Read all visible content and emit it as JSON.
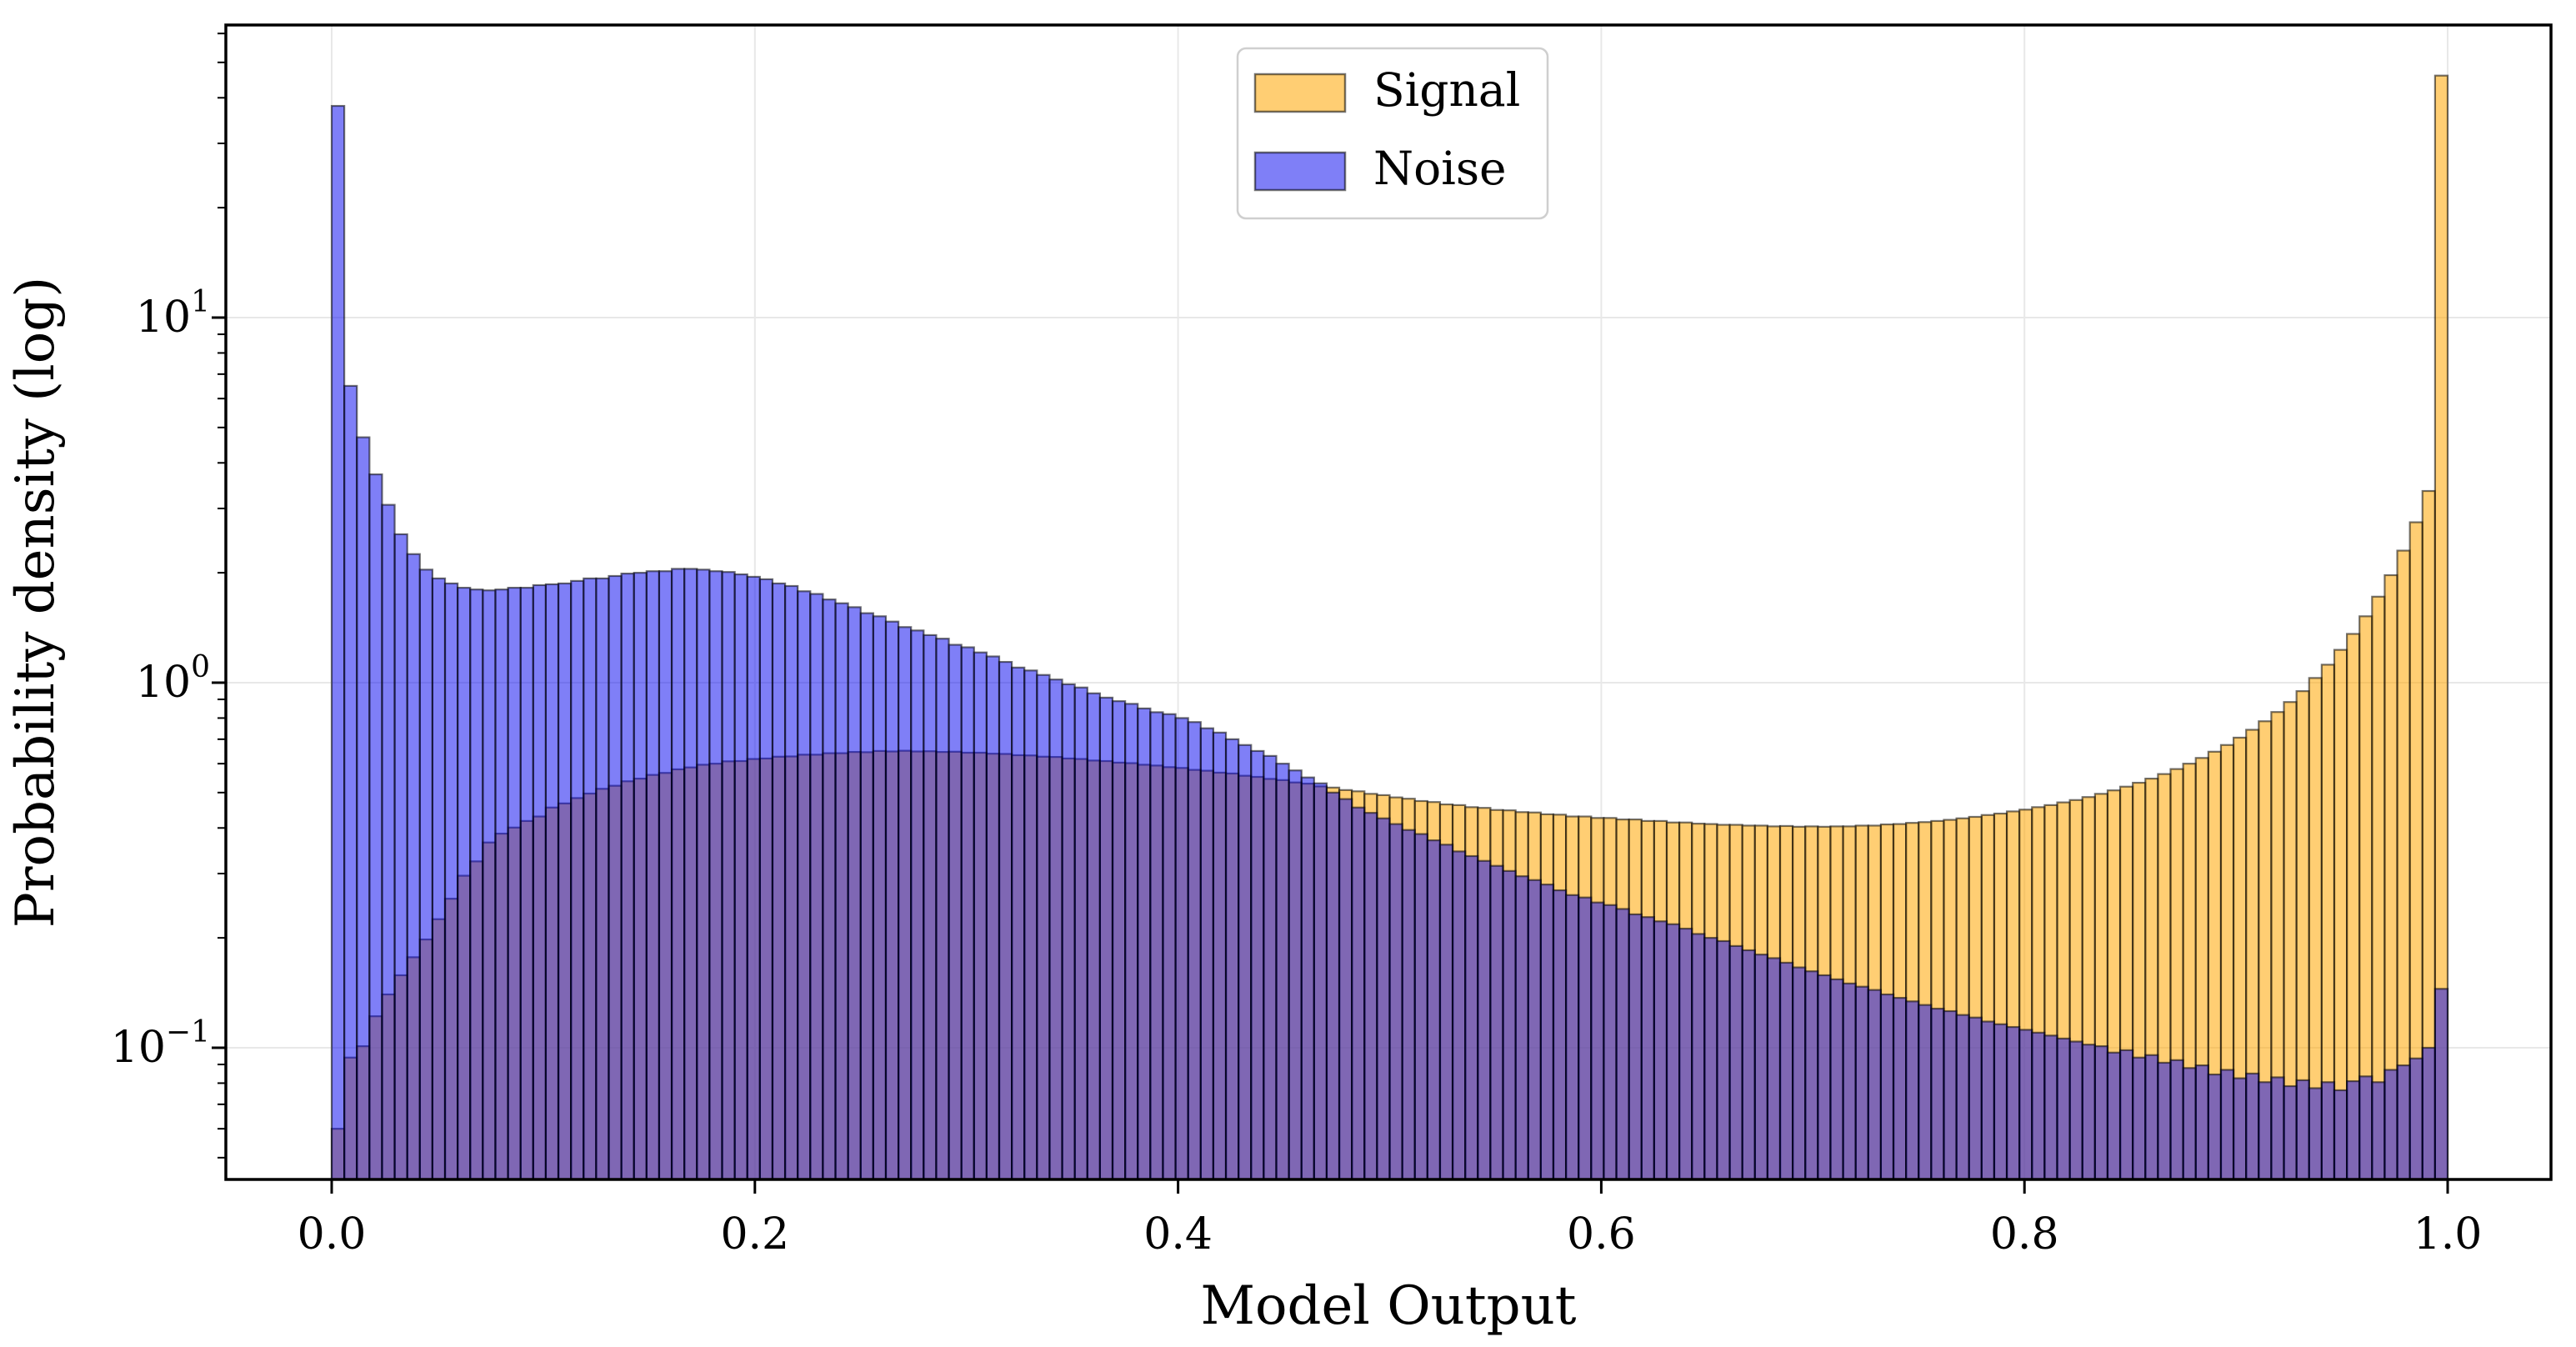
{
  "chart_data": {
    "type": "bar",
    "subtype": "overlaid-histogram",
    "title": "",
    "xlabel": "Model Output",
    "ylabel": "Probability density (log)",
    "y_scale": "log",
    "x_range": [
      0.0,
      1.0
    ],
    "n_bins": 168,
    "ylim": [
      0.044,
      63
    ],
    "grid": true,
    "x_ticks": [
      0.0,
      0.2,
      0.4,
      0.6,
      0.8,
      1.0
    ],
    "x_tick_labels": [
      "0.0",
      "0.2",
      "0.4",
      "0.6",
      "0.8",
      "1.0"
    ],
    "y_ticks": [
      {
        "value": 10,
        "base": "10",
        "exp": "1"
      },
      {
        "value": 1,
        "base": "10",
        "exp": "0"
      },
      {
        "value": 0.1,
        "base": "10",
        "exp": "−1"
      }
    ],
    "y_minor_exponents": [
      -2,
      -1,
      0,
      1
    ],
    "legend": {
      "position": "upper center",
      "entries": [
        {
          "label": "Signal",
          "fill": "rgba(255,165,0,0.55)",
          "edge": "rgba(0,0,0,0.55)"
        },
        {
          "label": "Noise",
          "fill": "rgba(10,10,240,0.52)",
          "edge": "rgba(0,0,0,0.55)"
        }
      ]
    },
    "colors": {
      "signal_fill": "rgba(255,165,0,0.55)",
      "noise_fill": "rgba(10,10,240,0.52)",
      "bar_edge": "rgba(0,0,0,0.55)",
      "grid": "#e8e8e8",
      "spine": "#000000",
      "legend_border": "#cfcfcf"
    },
    "series": [
      {
        "name": "Signal",
        "densities": [
          0.06,
          0.094,
          0.101,
          0.122,
          0.14,
          0.158,
          0.177,
          0.198,
          0.225,
          0.256,
          0.296,
          0.324,
          0.365,
          0.386,
          0.401,
          0.418,
          0.43,
          0.455,
          0.467,
          0.483,
          0.497,
          0.512,
          0.522,
          0.537,
          0.546,
          0.559,
          0.566,
          0.579,
          0.586,
          0.596,
          0.6,
          0.609,
          0.61,
          0.618,
          0.62,
          0.627,
          0.628,
          0.635,
          0.635,
          0.641,
          0.641,
          0.646,
          0.645,
          0.65,
          0.648,
          0.651,
          0.648,
          0.649,
          0.646,
          0.647,
          0.643,
          0.643,
          0.639,
          0.638,
          0.633,
          0.632,
          0.627,
          0.626,
          0.62,
          0.618,
          0.612,
          0.61,
          0.604,
          0.602,
          0.596,
          0.593,
          0.587,
          0.584,
          0.577,
          0.574,
          0.567,
          0.564,
          0.556,
          0.552,
          0.545,
          0.541,
          0.533,
          0.529,
          0.52,
          0.516,
          0.508,
          0.504,
          0.496,
          0.492,
          0.485,
          0.481,
          0.474,
          0.471,
          0.464,
          0.462,
          0.456,
          0.454,
          0.448,
          0.447,
          0.442,
          0.441,
          0.436,
          0.435,
          0.43,
          0.43,
          0.426,
          0.426,
          0.422,
          0.422,
          0.418,
          0.418,
          0.414,
          0.414,
          0.411,
          0.41,
          0.408,
          0.408,
          0.406,
          0.406,
          0.404,
          0.405,
          0.403,
          0.404,
          0.403,
          0.404,
          0.404,
          0.406,
          0.406,
          0.409,
          0.41,
          0.413,
          0.415,
          0.418,
          0.421,
          0.425,
          0.429,
          0.434,
          0.438,
          0.444,
          0.449,
          0.456,
          0.462,
          0.47,
          0.477,
          0.486,
          0.496,
          0.507,
          0.519,
          0.532,
          0.546,
          0.562,
          0.58,
          0.6,
          0.622,
          0.647,
          0.675,
          0.707,
          0.743,
          0.784,
          0.831,
          0.885,
          0.948,
          1.03,
          1.12,
          1.23,
          1.36,
          1.52,
          1.72,
          1.97,
          2.3,
          2.75,
          3.35,
          46
        ]
      },
      {
        "name": "Noise",
        "densities": [
          38,
          6.5,
          4.7,
          3.72,
          3.07,
          2.55,
          2.25,
          2.04,
          1.93,
          1.87,
          1.82,
          1.8,
          1.79,
          1.8,
          1.82,
          1.82,
          1.85,
          1.86,
          1.87,
          1.9,
          1.93,
          1.93,
          1.96,
          1.99,
          2.0,
          2.02,
          2.02,
          2.05,
          2.05,
          2.04,
          2.02,
          2.01,
          1.98,
          1.95,
          1.92,
          1.87,
          1.84,
          1.78,
          1.75,
          1.69,
          1.65,
          1.61,
          1.55,
          1.52,
          1.47,
          1.42,
          1.39,
          1.35,
          1.32,
          1.27,
          1.25,
          1.21,
          1.18,
          1.14,
          1.1,
          1.08,
          1.05,
          1.02,
          0.99,
          0.97,
          0.935,
          0.91,
          0.89,
          0.875,
          0.85,
          0.83,
          0.82,
          0.8,
          0.78,
          0.75,
          0.73,
          0.7,
          0.675,
          0.65,
          0.63,
          0.6,
          0.575,
          0.55,
          0.53,
          0.5,
          0.48,
          0.455,
          0.44,
          0.425,
          0.41,
          0.395,
          0.385,
          0.37,
          0.36,
          0.345,
          0.335,
          0.325,
          0.315,
          0.305,
          0.295,
          0.288,
          0.28,
          0.27,
          0.262,
          0.258,
          0.25,
          0.246,
          0.24,
          0.232,
          0.228,
          0.222,
          0.218,
          0.212,
          0.205,
          0.2,
          0.196,
          0.19,
          0.185,
          0.18,
          0.176,
          0.171,
          0.166,
          0.162,
          0.158,
          0.154,
          0.15,
          0.147,
          0.144,
          0.14,
          0.137,
          0.134,
          0.131,
          0.128,
          0.126,
          0.123,
          0.121,
          0.118,
          0.116,
          0.114,
          0.112,
          0.11,
          0.108,
          0.106,
          0.104,
          0.102,
          0.101,
          0.097,
          0.0985,
          0.094,
          0.0955,
          0.091,
          0.0925,
          0.088,
          0.0895,
          0.0845,
          0.087,
          0.0825,
          0.085,
          0.0805,
          0.083,
          0.0785,
          0.0815,
          0.0775,
          0.0805,
          0.0765,
          0.081,
          0.0835,
          0.0805,
          0.087,
          0.0895,
          0.0935,
          0.1,
          0.145
        ]
      }
    ]
  }
}
